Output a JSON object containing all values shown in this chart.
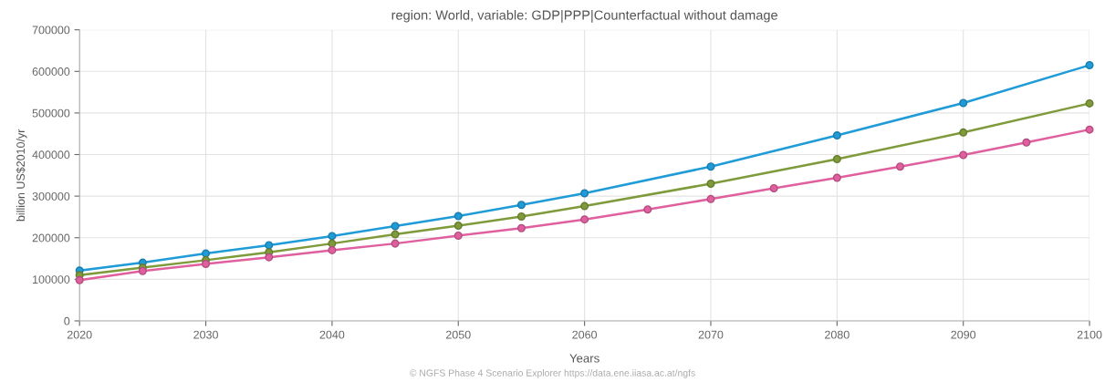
{
  "chart_data": {
    "type": "line",
    "title": "region: World, variable: GDP|PPP|Counterfactual without damage",
    "xlabel": "Years",
    "ylabel": "billion US$2010/yr",
    "annotations": [
      "© NGFS Phase 4 Scenario Explorer https://data.ene.iiasa.ac.at/ngfs"
    ],
    "series": [
      {
        "color": "#1f9bd7",
        "x": [
          2020,
          2025,
          2030,
          2035,
          2040,
          2045,
          2050,
          2055,
          2060,
          2070,
          2080,
          2090,
          2100
        ],
        "values": [
          121000,
          140000,
          162000,
          182000,
          204000,
          228000,
          252000,
          279000,
          307000,
          371000,
          446000,
          524000,
          615000
        ]
      },
      {
        "color": "#7f9a3a",
        "x": [
          2020,
          2025,
          2030,
          2035,
          2040,
          2045,
          2050,
          2055,
          2060,
          2070,
          2080,
          2090,
          2100
        ],
        "values": [
          110000,
          128000,
          146000,
          165000,
          186000,
          208000,
          229000,
          251000,
          276000,
          330000,
          389000,
          453000,
          523000
        ]
      },
      {
        "color": "#e0609f",
        "x": [
          2020,
          2025,
          2030,
          2035,
          2040,
          2045,
          2050,
          2055,
          2060,
          2065,
          2070,
          2075,
          2080,
          2085,
          2090,
          2095,
          2100
        ],
        "values": [
          98000,
          120000,
          137000,
          153000,
          170000,
          186000,
          205000,
          223000,
          244000,
          268000,
          293000,
          319000,
          344000,
          371000,
          399000,
          429000,
          460000
        ]
      }
    ],
    "xlim": [
      2020,
      2100
    ],
    "xticks": [
      2020,
      2030,
      2040,
      2050,
      2060,
      2070,
      2080,
      2090,
      2100
    ],
    "ylim": [
      0,
      700000
    ],
    "yticks": [
      0,
      100000,
      200000,
      300000,
      400000,
      500000,
      600000,
      700000
    ],
    "grid": true,
    "marker": "circle",
    "line_style": "solid",
    "legend": false
  }
}
